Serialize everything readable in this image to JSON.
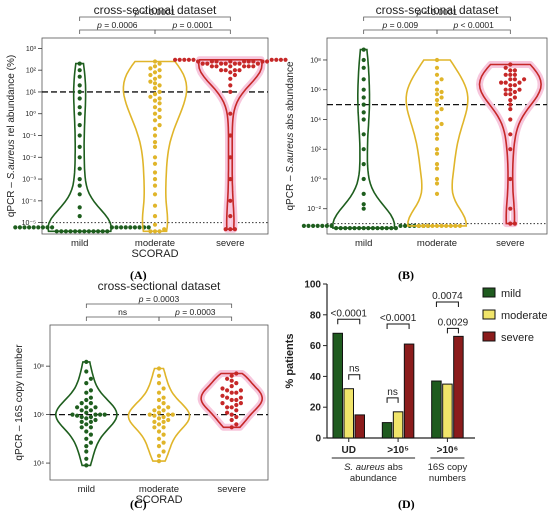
{
  "panel_labels": {
    "A": "(A)",
    "B": "(B)",
    "C": "(C)",
    "D": "(D)"
  },
  "colors": {
    "mild": "#1e5e1e",
    "moderate": "#e0b52a",
    "severe": "#c62828",
    "mild_fill": "#1f5b1f",
    "moderate_fill": "#f0e46a",
    "severe_fill": "#8b1c1c",
    "halo": "#f7c6dc"
  },
  "chart_data": [
    {
      "id": "A",
      "type": "violin",
      "title": "cross-sectional dataset",
      "xlabel": "SCORAD",
      "ylabel": "qPCR – S.aureus rel abundance (%)",
      "categories": [
        "mild",
        "moderate",
        "severe"
      ],
      "yscale": "log",
      "ylim": [
        3e-06,
        3000
      ],
      "yticks": [
        {
          "v": 1000,
          "t": "10³"
        },
        {
          "v": 100,
          "t": "10²"
        },
        {
          "v": 10,
          "t": "10¹"
        },
        {
          "v": 1,
          "t": "10⁰"
        },
        {
          "v": 0.1,
          "t": "10⁻¹"
        },
        {
          "v": 0.01,
          "t": "10⁻²"
        },
        {
          "v": 0.001,
          "t": "10⁻³"
        },
        {
          "v": 0.0001,
          "t": "10⁻⁴"
        },
        {
          "v": 1e-05,
          "t": "10⁻⁵"
        }
      ],
      "dashed_line": 10,
      "dotted_line": 1e-05,
      "series": [
        {
          "category": "mild",
          "values": [
            200,
            100,
            50,
            20,
            10,
            5,
            2,
            1,
            0.3,
            0.1,
            0.03,
            0.01,
            0.003,
            0.001,
            0.0005,
            0.0002,
            5e-05,
            2e-05,
            6e-06,
            6e-06,
            6e-06,
            6e-06,
            6e-06,
            6e-06,
            6e-06,
            6e-06,
            6e-06,
            6e-06,
            6e-06,
            6e-06,
            6e-06,
            6e-06,
            6e-06,
            6e-06,
            6e-06,
            6e-06,
            4e-06,
            4e-06,
            4e-06,
            4e-06,
            4e-06,
            4e-06,
            4e-06,
            4e-06,
            4e-06,
            4e-06,
            4e-06,
            4e-06
          ]
        },
        {
          "category": "moderate",
          "values": [
            250,
            200,
            150,
            120,
            100,
            80,
            60,
            50,
            40,
            30,
            25,
            20,
            15,
            10,
            8,
            6,
            5,
            4,
            3,
            2,
            1.5,
            1,
            0.7,
            0.5,
            0.3,
            0.2,
            0.1,
            0.05,
            0.03,
            0.01,
            0.005,
            0.002,
            0.001,
            0.0005,
            0.0002,
            6e-05,
            2e-05,
            8e-06,
            5e-06,
            4e-06,
            4e-06,
            4e-06
          ]
        },
        {
          "category": "severe",
          "values": [
            300,
            300,
            300,
            300,
            300,
            300,
            300,
            300,
            300,
            250,
            250,
            250,
            250,
            250,
            250,
            250,
            250,
            250,
            200,
            200,
            200,
            200,
            200,
            200,
            200,
            150,
            150,
            150,
            150,
            150,
            150,
            100,
            100,
            100,
            100,
            80,
            60,
            40,
            20,
            10,
            1,
            0.1,
            0.01,
            0.001,
            0.0001,
            2e-05,
            5e-06,
            5e-06,
            5e-06
          ]
        }
      ],
      "brackets": [
        {
          "from": "mild",
          "to": "severe",
          "label": "p < 0.0001"
        },
        {
          "from": "mild",
          "to": "moderate",
          "label": "p = 0.0006"
        },
        {
          "from": "moderate",
          "to": "severe",
          "label": "p = 0.0001"
        }
      ]
    },
    {
      "id": "B",
      "type": "violin",
      "title": "cross-sectional dataset",
      "xlabel": "",
      "ylabel": "qPCR – S.aureus abs abundance",
      "categories": [
        "mild",
        "moderate",
        "severe"
      ],
      "yscale": "log",
      "ylim": [
        0.0002,
        3000000000
      ],
      "yticks": [
        {
          "v": 100000000,
          "t": "10⁸"
        },
        {
          "v": 1000000,
          "t": "10⁶"
        },
        {
          "v": 10000,
          "t": "10⁴"
        },
        {
          "v": 100,
          "t": "10²"
        },
        {
          "v": 1,
          "t": "10⁰"
        },
        {
          "v": 0.01,
          "t": "10⁻²"
        }
      ],
      "dashed_line": 100000,
      "dotted_line": 0.001,
      "series": [
        {
          "category": "mild",
          "values": [
            500000000,
            100000000,
            30000000,
            5000000,
            1000000,
            300000,
            100000,
            30000,
            10000,
            1000,
            100,
            10,
            1,
            0.1,
            0.02,
            0.01,
            0.0007,
            0.0007,
            0.0007,
            0.0007,
            0.0007,
            0.0007,
            0.0007,
            0.0007,
            0.0007,
            0.0007,
            0.0007,
            0.0007,
            0.0007,
            0.0007,
            0.0005,
            0.0005,
            0.0005,
            0.0005,
            0.0005,
            0.0005,
            0.0005,
            0.0005,
            0.0005,
            0.0005,
            0.0005,
            0.0005,
            0.0005,
            0.0005
          ]
        },
        {
          "category": "moderate",
          "values": [
            100000000,
            30000000,
            10000000,
            5000000,
            3000000,
            1000000,
            700000,
            500000,
            300000,
            200000,
            100000,
            50000,
            30000,
            10000,
            5000,
            3000,
            1000,
            500,
            100,
            50,
            10,
            5,
            1,
            0.5,
            0.1,
            0.0007,
            0.0007,
            0.0007,
            0.0007,
            0.0007,
            0.0007,
            0.0007,
            0.0007,
            0.0007,
            0.0007
          ]
        },
        {
          "category": "severe",
          "values": [
            50000000,
            30000000,
            20000000,
            20000000,
            10000000,
            10000000,
            10000000,
            5000000,
            5000000,
            5000000,
            3000000,
            3000000,
            3000000,
            2000000,
            2000000,
            1000000,
            1000000,
            1000000,
            700000,
            500000,
            500000,
            300000,
            200000,
            100000,
            50000,
            10000,
            1000,
            100,
            1,
            0.01,
            0.001,
            0.001
          ]
        }
      ],
      "brackets": [
        {
          "from": "mild",
          "to": "severe",
          "label": "p < 0.0001"
        },
        {
          "from": "mild",
          "to": "moderate",
          "label": "p = 0.009"
        },
        {
          "from": "moderate",
          "to": "severe",
          "label": "p < 0.0001"
        }
      ]
    },
    {
      "id": "C",
      "type": "violin",
      "title": "cross-sectional dataset",
      "xlabel": "SCORAD",
      "ylabel": "qPCR – 16S copy number",
      "categories": [
        "mild",
        "moderate",
        "severe"
      ],
      "yscale": "log",
      "ylim": [
        2000,
        5000000000
      ],
      "yticks": [
        {
          "v": 100000000,
          "t": "10⁸"
        },
        {
          "v": 1000000,
          "t": "10⁶"
        },
        {
          "v": 10000,
          "t": "10⁴"
        }
      ],
      "dashed_line": 1000000,
      "series": [
        {
          "category": "mild",
          "values": [
            150000000,
            60000000,
            30000000,
            20000000,
            10000000,
            8000000,
            5000000,
            4000000,
            3000000,
            3000000,
            2000000,
            2000000,
            2000000,
            1500000,
            1500000,
            1200000,
            1000000,
            1000000,
            1000000,
            1000000,
            900000,
            800000,
            800000,
            700000,
            600000,
            500000,
            500000,
            400000,
            300000,
            300000,
            200000,
            150000,
            100000,
            70000,
            50000,
            30000,
            15000,
            8000
          ]
        },
        {
          "category": "moderate",
          "values": [
            80000000,
            40000000,
            20000000,
            12000000,
            8000000,
            5000000,
            4000000,
            3000000,
            2000000,
            2000000,
            1500000,
            1500000,
            1200000,
            1000000,
            1000000,
            1000000,
            900000,
            800000,
            700000,
            600000,
            500000,
            500000,
            400000,
            300000,
            300000,
            200000,
            150000,
            100000,
            70000,
            50000,
            30000,
            20000,
            12000
          ]
        },
        {
          "category": "severe",
          "values": [
            50000000,
            40000000,
            30000000,
            25000000,
            20000000,
            15000000,
            12000000,
            10000000,
            10000000,
            8000000,
            8000000,
            6000000,
            5000000,
            5000000,
            4000000,
            4000000,
            3000000,
            3000000,
            2500000,
            2000000,
            2000000,
            1500000,
            1200000,
            1000000,
            800000,
            600000,
            400000,
            300000
          ]
        }
      ],
      "brackets": [
        {
          "from": "mild",
          "to": "severe",
          "label": "p = 0.0003"
        },
        {
          "from": "mild",
          "to": "moderate",
          "label": "ns"
        },
        {
          "from": "moderate",
          "to": "severe",
          "label": "p = 0.0003"
        }
      ]
    },
    {
      "id": "D",
      "type": "bar",
      "ylabel": "% patients",
      "ylim": [
        0,
        100
      ],
      "yticks": [
        0,
        20,
        40,
        60,
        80,
        100
      ],
      "categories": [
        "UD",
        ">10⁵",
        ">10⁶"
      ],
      "group_labels": [
        {
          "text": "S. aureus abs abundance",
          "spans": [
            "UD",
            ">10⁵"
          ]
        },
        {
          "text": "16S copy numbers",
          "spans": [
            ">10⁶"
          ]
        }
      ],
      "series": [
        {
          "name": "mild",
          "values": [
            68,
            10,
            37
          ]
        },
        {
          "name": "moderate",
          "values": [
            32,
            17,
            35
          ]
        },
        {
          "name": "severe",
          "values": [
            15,
            61,
            66
          ]
        }
      ],
      "brackets": [
        {
          "group": 0,
          "from": 0,
          "to": 2,
          "label": "<0.0001",
          "level": 2
        },
        {
          "group": 0,
          "from": 1,
          "to": 2,
          "label": "ns",
          "level": 1
        },
        {
          "group": 1,
          "from": 0,
          "to": 1,
          "label": "ns",
          "level": 1
        },
        {
          "group": 1,
          "from": 0,
          "to": 2,
          "label": "<0.0001",
          "level": 2
        },
        {
          "group": 2,
          "from": 0,
          "to": 2,
          "label": "0.0074",
          "level": 2
        },
        {
          "group": 2,
          "from": 1,
          "to": 2,
          "label": "0.0029",
          "level": 1
        }
      ]
    }
  ]
}
